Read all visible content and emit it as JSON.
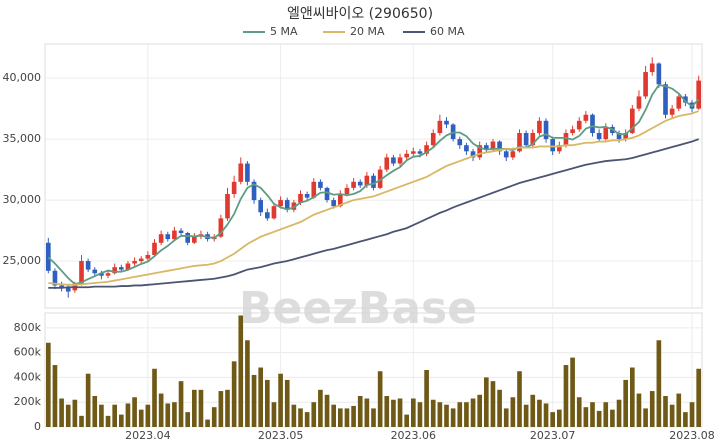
{
  "chart_data": [
    {
      "type": "candlestick",
      "title": "엘앤씨바이오 (290650)",
      "watermark": "BeezBase",
      "up_color": "#e0392f",
      "down_color": "#2f5fbf",
      "open": [
        26500,
        24200,
        23000,
        22900,
        22600,
        23100,
        25000,
        24300,
        24000,
        23800,
        24000,
        24500,
        24300,
        24800,
        25000,
        25200,
        25500,
        26500,
        27200,
        26800,
        27500,
        27300,
        26500,
        27000,
        27200,
        26800,
        27000,
        28500,
        30500,
        31500,
        33000,
        31500,
        30000,
        29000,
        28500,
        29500,
        30000,
        29200,
        29800,
        30500,
        30200,
        31500,
        31000,
        30000,
        29500,
        30500,
        31000,
        31500,
        31200,
        32000,
        31000,
        32500,
        33500,
        33000,
        33500,
        33800,
        34000,
        33800,
        34500,
        35500,
        36500,
        36200,
        35000,
        34500,
        34000,
        33500,
        34500,
        34200,
        34800,
        34000,
        33500,
        34000,
        35500,
        34500,
        35500,
        36500,
        35000,
        34000,
        34500,
        35500,
        35800,
        36500,
        37000,
        35500,
        35000,
        36000,
        35500,
        35000,
        35500,
        37500,
        38500,
        40500,
        41200,
        39500,
        37000,
        37500,
        38500,
        38000,
        37500
      ],
      "high": [
        26900,
        24400,
        23300,
        23100,
        23300,
        25500,
        25200,
        24500,
        24200,
        24300,
        24800,
        24700,
        25000,
        25300,
        25400,
        25800,
        26800,
        27500,
        27400,
        27800,
        27700,
        27400,
        27300,
        27500,
        27400,
        27200,
        28800,
        31000,
        32000,
        33500,
        33200,
        31700,
        30200,
        29300,
        29800,
        30300,
        30200,
        30000,
        30800,
        30700,
        31800,
        31700,
        31100,
        30200,
        30800,
        31300,
        31800,
        31700,
        32300,
        32200,
        32800,
        33800,
        33700,
        33800,
        34100,
        34300,
        34200,
        34800,
        35800,
        37000,
        36800,
        36300,
        35200,
        34700,
        34200,
        34800,
        34700,
        35000,
        34900,
        34200,
        34300,
        35800,
        35700,
        35800,
        36800,
        36700,
        35200,
        34800,
        35800,
        36100,
        36800,
        37300,
        37100,
        35800,
        36300,
        36200,
        35700,
        35800,
        37800,
        39000,
        41000,
        41700,
        41300,
        39700,
        37800,
        38800,
        38700,
        38200,
        40200
      ],
      "low": [
        24000,
        22700,
        22500,
        22000,
        22400,
        23000,
        24100,
        23700,
        23500,
        23600,
        23900,
        24100,
        24200,
        24600,
        24800,
        25000,
        25400,
        26300,
        26600,
        26700,
        27000,
        26300,
        26400,
        26800,
        26600,
        26600,
        26900,
        28300,
        30200,
        31300,
        31200,
        29700,
        28700,
        28300,
        28400,
        29300,
        29000,
        29000,
        29600,
        30000,
        30100,
        30800,
        29800,
        29300,
        29400,
        30300,
        30800,
        31000,
        31000,
        30800,
        30900,
        32300,
        32800,
        32800,
        33300,
        33500,
        33500,
        33600,
        34300,
        35300,
        35900,
        34800,
        34200,
        33700,
        33200,
        33300,
        33900,
        34000,
        33700,
        33200,
        33300,
        33900,
        34300,
        34300,
        35300,
        34700,
        33700,
        33800,
        34300,
        35300,
        35600,
        36300,
        35200,
        34800,
        34900,
        35300,
        34700,
        34800,
        35400,
        37300,
        38300,
        40200,
        39200,
        36700,
        36700,
        37300,
        37700,
        37200,
        37400
      ],
      "close": [
        24200,
        23000,
        22800,
        22500,
        23000,
        25000,
        24300,
        24000,
        23800,
        24000,
        24500,
        24300,
        24800,
        25000,
        25200,
        25500,
        26500,
        27200,
        26800,
        27500,
        27300,
        26500,
        27000,
        27200,
        26800,
        27000,
        28500,
        30500,
        31500,
        33000,
        31500,
        30000,
        29000,
        28500,
        29500,
        30000,
        29200,
        29800,
        30500,
        30200,
        31500,
        31000,
        30000,
        29500,
        30500,
        31000,
        31500,
        31200,
        32000,
        31000,
        32500,
        33500,
        33000,
        33500,
        33800,
        34000,
        33800,
        34500,
        35500,
        36500,
        36200,
        35000,
        34500,
        34000,
        33500,
        34500,
        34200,
        34800,
        34000,
        33500,
        34000,
        35500,
        34500,
        35500,
        36500,
        35000,
        34000,
        34500,
        35500,
        35800,
        36500,
        37000,
        35500,
        35000,
        36000,
        35500,
        35000,
        35500,
        37500,
        38500,
        40500,
        41200,
        39500,
        37000,
        37500,
        38500,
        38000,
        37500,
        39800
      ],
      "series": [
        {
          "name": "5 MA",
          "color": "#5e9c83",
          "values": [
            25300,
            24800,
            24200,
            23600,
            23100,
            23260,
            23520,
            23760,
            24020,
            24220,
            24120,
            24120,
            24280,
            24520,
            24760,
            24960,
            25400,
            25880,
            26240,
            26700,
            27060,
            27060,
            27020,
            27100,
            26960,
            26900,
            27300,
            28000,
            28860,
            30100,
            31000,
            31300,
            31000,
            30400,
            29700,
            29400,
            29240,
            29400,
            29800,
            29940,
            30240,
            30600,
            30640,
            30440,
            30500,
            30400,
            30500,
            30740,
            31240,
            31340,
            31640,
            32040,
            32400,
            32700,
            33260,
            33560,
            33620,
            33920,
            34320,
            34860,
            35300,
            35540,
            35540,
            35240,
            34640,
            34300,
            34140,
            34200,
            34200,
            34200,
            34100,
            34360,
            34300,
            34600,
            35200,
            35400,
            35100,
            35100,
            35100,
            34960,
            35260,
            35860,
            36060,
            35960,
            36000,
            35800,
            35400,
            35400,
            35900,
            36400,
            37400,
            38640,
            39440,
            39340,
            39140,
            38740,
            38100,
            37700,
            38260
          ]
        },
        {
          "name": "20 MA",
          "color": "#d8b864",
          "values": [
            23200,
            23150,
            23100,
            23050,
            23050,
            23100,
            23150,
            23200,
            23250,
            23300,
            23400,
            23500,
            23600,
            23700,
            23800,
            23900,
            24000,
            24100,
            24200,
            24300,
            24400,
            24500,
            24600,
            24650,
            24700,
            24800,
            25000,
            25300,
            25600,
            26000,
            26400,
            26700,
            27000,
            27200,
            27400,
            27600,
            27800,
            28000,
            28200,
            28500,
            28800,
            29000,
            29200,
            29400,
            29600,
            29800,
            30000,
            30100,
            30200,
            30300,
            30500,
            30700,
            30900,
            31100,
            31300,
            31500,
            31700,
            31900,
            32200,
            32500,
            32800,
            33000,
            33200,
            33400,
            33600,
            33800,
            33900,
            34000,
            34100,
            34200,
            34200,
            34300,
            34300,
            34300,
            34400,
            34400,
            34400,
            34400,
            34500,
            34500,
            34600,
            34700,
            34700,
            34800,
            34800,
            34900,
            34900,
            35000,
            35100,
            35300,
            35600,
            35900,
            36200,
            36500,
            36700,
            36900,
            37000,
            37100,
            37300
          ]
        },
        {
          "name": "60 MA",
          "color": "#4b5573",
          "values": [
            22800,
            22800,
            22800,
            22850,
            22850,
            22850,
            22850,
            22900,
            22900,
            22900,
            22900,
            22950,
            22950,
            23000,
            23000,
            23050,
            23100,
            23150,
            23200,
            23250,
            23300,
            23350,
            23400,
            23450,
            23500,
            23550,
            23650,
            23750,
            23900,
            24100,
            24300,
            24400,
            24500,
            24650,
            24800,
            24900,
            25000,
            25150,
            25300,
            25450,
            25600,
            25750,
            25900,
            26000,
            26150,
            26300,
            26450,
            26600,
            26750,
            26900,
            27050,
            27200,
            27400,
            27550,
            27700,
            27950,
            28200,
            28450,
            28700,
            28950,
            29150,
            29400,
            29600,
            29800,
            30000,
            30200,
            30400,
            30600,
            30800,
            31000,
            31200,
            31400,
            31550,
            31700,
            31850,
            32000,
            32150,
            32300,
            32450,
            32600,
            32750,
            32900,
            33000,
            33100,
            33200,
            33250,
            33300,
            33350,
            33450,
            33600,
            33750,
            33900,
            34050,
            34200,
            34350,
            34500,
            34650,
            34800,
            35000
          ]
        }
      ],
      "ylim": [
        21150,
        42800
      ],
      "yticks": [
        {
          "value": 25000,
          "label": "25,000"
        },
        {
          "value": 30000,
          "label": "30,000"
        },
        {
          "value": 35000,
          "label": "35,000"
        },
        {
          "value": 40000,
          "label": "40,000"
        }
      ],
      "grid": true
    },
    {
      "type": "bar",
      "color": "#6e5a16",
      "categories": [
        null,
        null,
        null,
        null,
        null,
        null,
        null,
        null,
        null,
        null,
        null,
        null,
        null,
        null,
        null,
        "2023.04",
        null,
        null,
        null,
        null,
        null,
        null,
        null,
        null,
        null,
        null,
        null,
        null,
        null,
        null,
        null,
        null,
        null,
        null,
        null,
        "2023.05",
        null,
        null,
        null,
        null,
        null,
        null,
        null,
        null,
        null,
        null,
        null,
        null,
        null,
        null,
        null,
        null,
        null,
        null,
        null,
        "2023.06",
        null,
        null,
        null,
        null,
        null,
        null,
        null,
        null,
        null,
        null,
        null,
        null,
        null,
        null,
        null,
        null,
        null,
        null,
        null,
        null,
        "2023.07",
        null,
        null,
        null,
        null,
        null,
        null,
        null,
        null,
        null,
        null,
        null,
        null,
        null,
        null,
        null,
        null,
        null,
        null,
        null,
        null,
        "2023.08",
        null
      ],
      "values": [
        680000,
        500000,
        230000,
        180000,
        220000,
        90000,
        430000,
        250000,
        180000,
        90000,
        180000,
        100000,
        190000,
        240000,
        140000,
        180000,
        470000,
        270000,
        190000,
        200000,
        370000,
        120000,
        300000,
        300000,
        60000,
        160000,
        290000,
        300000,
        530000,
        900000,
        700000,
        420000,
        480000,
        380000,
        200000,
        430000,
        380000,
        180000,
        150000,
        120000,
        200000,
        300000,
        260000,
        180000,
        150000,
        150000,
        170000,
        250000,
        230000,
        150000,
        450000,
        250000,
        220000,
        230000,
        100000,
        230000,
        200000,
        460000,
        220000,
        200000,
        180000,
        150000,
        200000,
        200000,
        230000,
        260000,
        400000,
        370000,
        300000,
        150000,
        240000,
        450000,
        180000,
        260000,
        220000,
        190000,
        120000,
        140000,
        500000,
        560000,
        240000,
        160000,
        200000,
        130000,
        200000,
        140000,
        220000,
        380000,
        480000,
        270000,
        150000,
        290000,
        700000,
        250000,
        180000,
        270000,
        120000,
        200000,
        470000
      ],
      "ylim": [
        0,
        920000
      ],
      "yticks": [
        0,
        {
          "value": 200000,
          "label": "200k"
        },
        {
          "value": 400000,
          "label": "400k"
        },
        {
          "value": 600000,
          "label": "600k"
        },
        {
          "value": 800000,
          "label": "800k"
        }
      ],
      "grid": true
    }
  ]
}
